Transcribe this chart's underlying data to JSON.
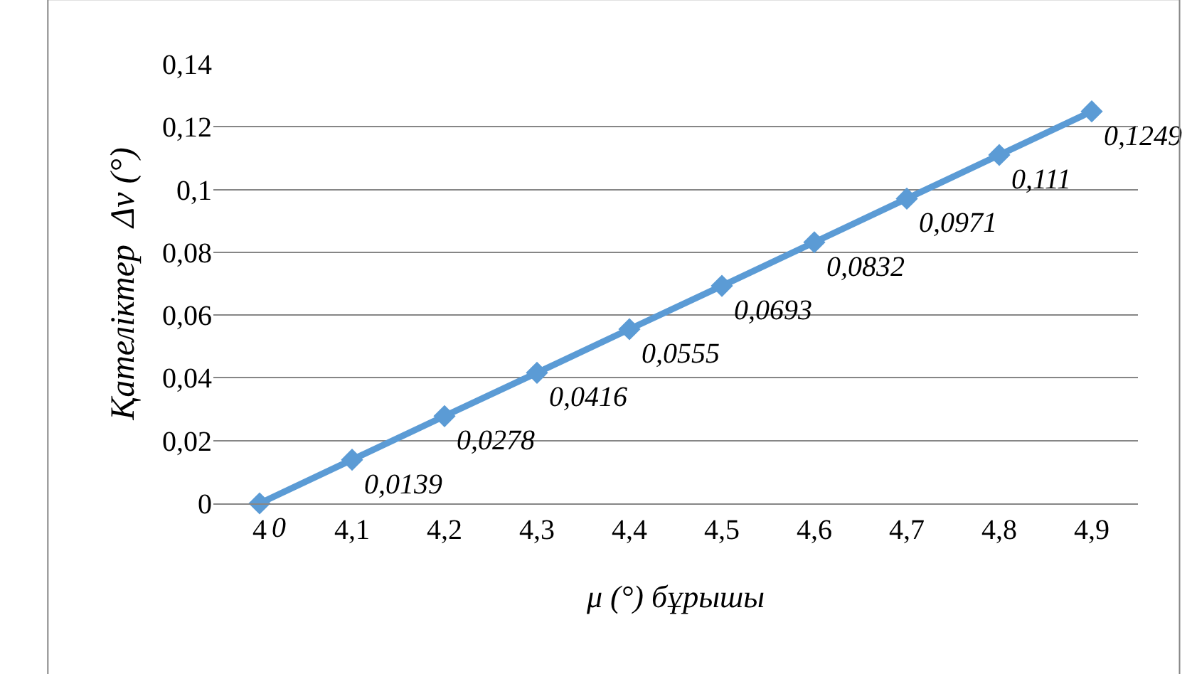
{
  "chart_data": {
    "type": "line",
    "xlabel": "μ (°) бұрышы",
    "ylabel": "Қателіктер  Δv (°)",
    "categories": [
      "4",
      "4,1",
      "4,2",
      "4,3",
      "4,4",
      "4,5",
      "4,6",
      "4,7",
      "4,8",
      "4,9"
    ],
    "series": [
      {
        "color": "#5b9bd5",
        "values": [
          0,
          0.0139,
          0.0278,
          0.0416,
          0.0555,
          0.0693,
          0.0832,
          0.0971,
          0.111,
          0.1249
        ],
        "value_labels": [
          "0",
          "0,0139",
          "0,0278",
          "0,0416",
          "0,0555",
          "0,0693",
          "0,0832",
          "0,0971",
          "0,111",
          "0,1249"
        ]
      }
    ],
    "ylim": [
      0,
      0.14
    ],
    "yticks": [
      0,
      {
        "value": 0.02,
        "label": "0,02"
      },
      {
        "value": 0.04,
        "label": "0,04"
      },
      {
        "value": 0.06,
        "label": "0,06"
      },
      {
        "value": 0.08,
        "label": "0,08"
      },
      {
        "value": 0.1,
        "label": "0,1"
      },
      {
        "value": 0.12,
        "label": "0,12"
      },
      {
        "value": 0.14,
        "label": "0,14"
      }
    ],
    "grid": "y",
    "legend": false,
    "marker": "diamond",
    "line_style": "solid"
  }
}
